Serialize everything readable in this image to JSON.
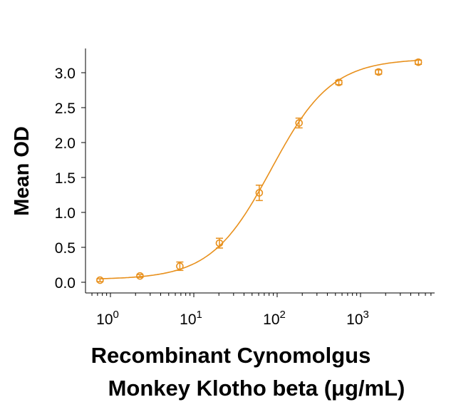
{
  "chart_data": {
    "type": "scatter",
    "title": "",
    "xlabel_line1": "Recombinant Cynomolgus",
    "xlabel_line2": "Monkey Klotho beta (μg/mL)",
    "ylabel": "Mean OD",
    "xscale": "log",
    "xlim": [
      0.6,
      8000
    ],
    "ylim": [
      -0.15,
      3.35
    ],
    "x_ticks": [
      {
        "value": 1,
        "base": "10",
        "exp": "0"
      },
      {
        "value": 10,
        "base": "10",
        "exp": "1"
      },
      {
        "value": 100,
        "base": "10",
        "exp": "2"
      },
      {
        "value": 1000,
        "base": "10",
        "exp": "3"
      }
    ],
    "y_ticks": [
      "0.0",
      "0.5",
      "1.0",
      "1.5",
      "2.0",
      "2.5",
      "3.0"
    ],
    "grid": false,
    "legend": null,
    "color": "#E8901C",
    "series": [
      {
        "name": "Mean OD",
        "x": [
          0.75,
          2.26,
          6.8,
          20.3,
          61,
          183,
          549,
          1646,
          4938
        ],
        "y": [
          0.03,
          0.09,
          0.23,
          0.56,
          1.28,
          2.28,
          2.86,
          3.01,
          3.15
        ],
        "error": [
          0.02,
          0.02,
          0.06,
          0.07,
          0.11,
          0.07,
          0.03,
          0.03,
          0.03
        ]
      }
    ],
    "fit": {
      "type": "4PL",
      "bottom": 0.04,
      "top": 3.2,
      "ec50": 85,
      "hill": 1.2
    }
  }
}
